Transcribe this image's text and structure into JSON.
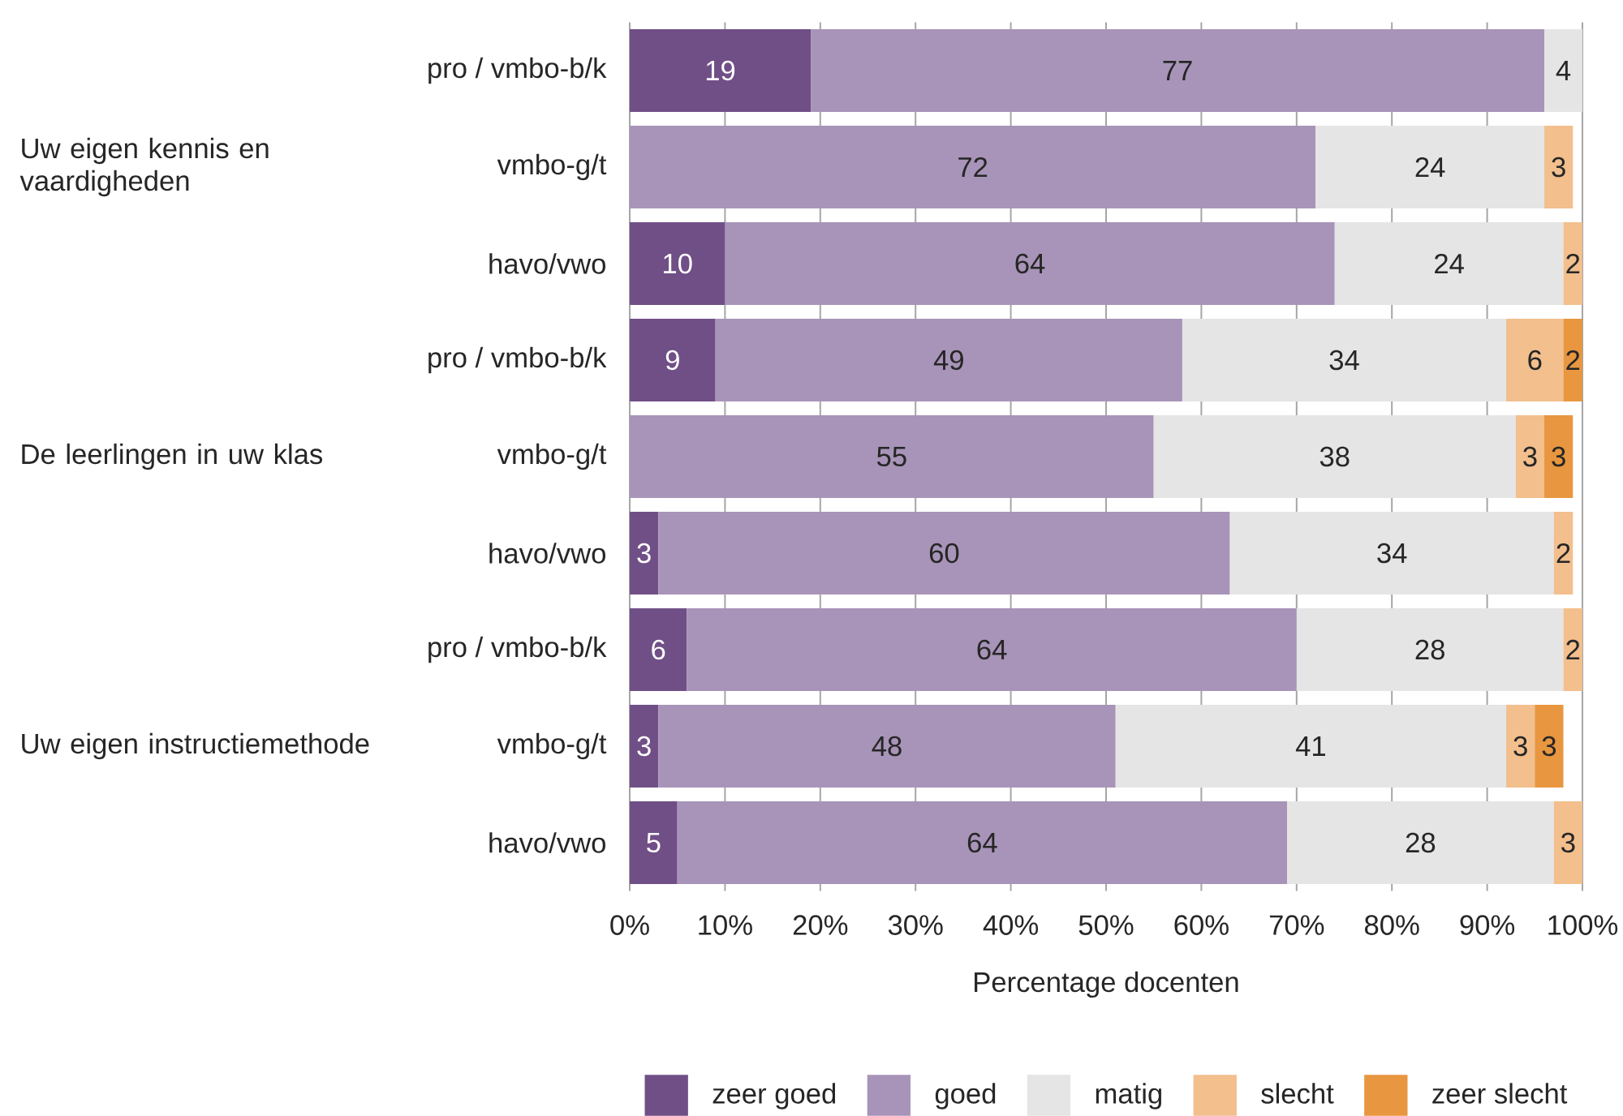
{
  "chart_data": {
    "type": "bar",
    "orientation": "horizontal",
    "stacked": true,
    "categories": [
      "pro / vmbo-b/k",
      "vmbo-g/t",
      "havo/vwo",
      "pro / vmbo-b/k",
      "vmbo-g/t",
      "havo/vwo",
      "pro / vmbo-b/k",
      "vmbo-g/t",
      "havo/vwo"
    ],
    "series": [
      {
        "name": "zeer goed",
        "color": "#704f87",
        "values": [
          19,
          null,
          10,
          9,
          null,
          3,
          6,
          3,
          5
        ]
      },
      {
        "name": "goed",
        "color": "#a894b8",
        "values": [
          77,
          72,
          64,
          49,
          55,
          60,
          64,
          48,
          64
        ]
      },
      {
        "name": "matig",
        "color": "#e5e5e5",
        "values": [
          4,
          24,
          24,
          34,
          38,
          34,
          28,
          41,
          28
        ]
      },
      {
        "name": "slecht",
        "color": "#f2bf8d",
        "values": [
          null,
          3,
          2,
          6,
          3,
          2,
          2,
          3,
          3
        ]
      },
      {
        "name": "zeer slecht",
        "color": "#e8963f",
        "values": [
          null,
          null,
          null,
          2,
          3,
          null,
          null,
          3,
          null
        ]
      }
    ],
    "xlabel": "Percentage docenten",
    "xlim": [
      0,
      100
    ],
    "xticks": [
      {
        "value": 0,
        "label": "0%"
      },
      {
        "value": 10,
        "label": "10%"
      },
      {
        "value": 20,
        "label": "20%"
      },
      {
        "value": 30,
        "label": "30%"
      },
      {
        "value": 40,
        "label": "40%"
      },
      {
        "value": 50,
        "label": "50%"
      },
      {
        "value": 60,
        "label": "60%"
      },
      {
        "value": 70,
        "label": "70%"
      },
      {
        "value": 80,
        "label": "80%"
      },
      {
        "value": 90,
        "label": "90%"
      },
      {
        "value": 100,
        "label": "100%"
      }
    ],
    "grid": "x",
    "legend": "bottom",
    "data_labels": true,
    "annotations": [
      "Uw eigen kennis en vaardigheden",
      "De leerlingen in uw klas",
      "Uw eigen instructiemethode"
    ]
  }
}
